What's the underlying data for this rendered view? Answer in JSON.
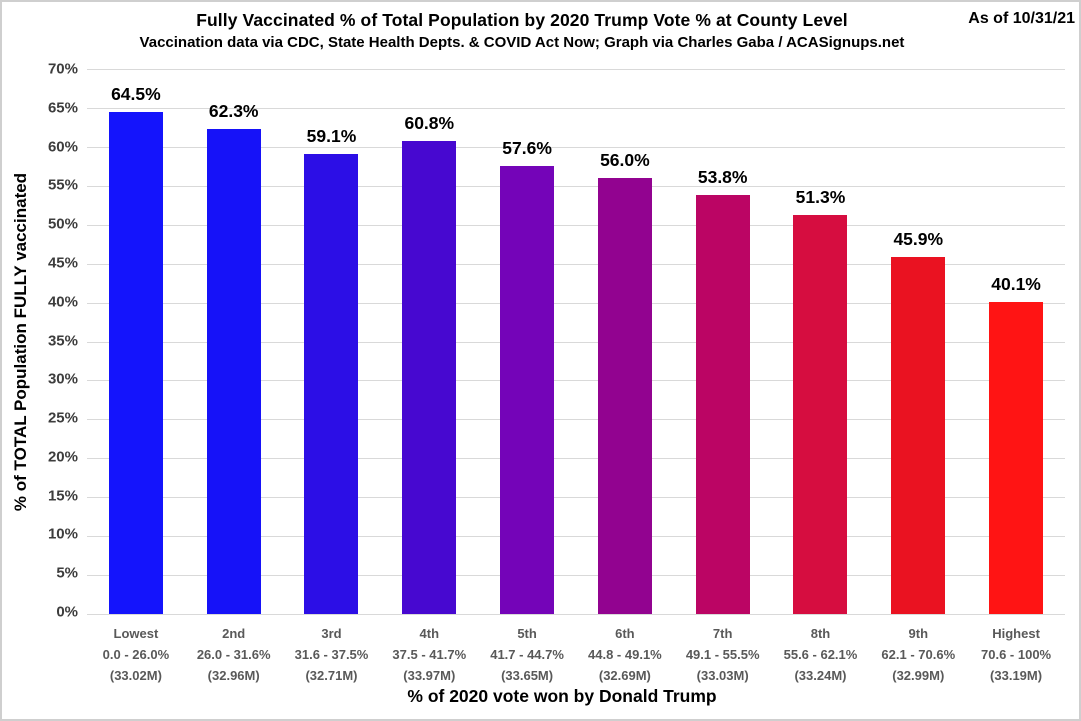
{
  "header": {
    "title": "Fully Vaccinated % of Total Population by 2020 Trump Vote % at County Level",
    "subtitle": "Vaccination data via CDC, State Health Depts. & COVID Act Now; Graph via Charles Gaba / ACASignups.net",
    "as_of": "As of 10/31/21"
  },
  "chart_data": {
    "type": "bar",
    "title": "Fully Vaccinated % of Total Population by 2020 Trump Vote % at County Level",
    "subtitle": "Vaccination data via CDC, State Health Depts. & COVID Act Now; Graph via Charles Gaba / ACASignups.net",
    "xlabel": "% of 2020 vote won by Donald Trump",
    "ylabel": "% of TOTAL Population FULLY vaccinated",
    "ylim": [
      0,
      70
    ],
    "ytick_step": 5,
    "ytick_labels": [
      "70%",
      "65%",
      "60%",
      "55%",
      "50%",
      "45%",
      "40%",
      "35%",
      "30%",
      "25%",
      "20%",
      "15%",
      "10%",
      "5%",
      "0%"
    ],
    "grid": "on",
    "legend": "none",
    "bars": [
      {
        "rank": "Lowest",
        "vote_range": "0.0 - 26.0%",
        "population": "(33.02M)",
        "value": 64.5,
        "value_label": "64.5%",
        "color": "#1414fc"
      },
      {
        "rank": "2nd",
        "vote_range": "26.0 - 31.6%",
        "population": "(32.96M)",
        "value": 62.3,
        "value_label": "62.3%",
        "color": "#1612f8"
      },
      {
        "rank": "3rd",
        "vote_range": "31.6 - 37.5%",
        "population": "(32.71M)",
        "value": 59.1,
        "value_label": "59.1%",
        "color": "#2c0ee6"
      },
      {
        "rank": "4th",
        "vote_range": "37.5 - 41.7%",
        "population": "(33.97M)",
        "value": 60.8,
        "value_label": "60.8%",
        "color": "#4708d0"
      },
      {
        "rank": "5th",
        "vote_range": "41.7 - 44.7%",
        "population": "(33.65M)",
        "value": 57.6,
        "value_label": "57.6%",
        "color": "#7404b8"
      },
      {
        "rank": "6th",
        "vote_range": "44.8 - 49.1%",
        "population": "(32.69M)",
        "value": 56.0,
        "value_label": "56.0%",
        "color": "#920390"
      },
      {
        "rank": "7th",
        "vote_range": "49.1 - 55.5%",
        "population": "(33.03M)",
        "value": 53.8,
        "value_label": "53.8%",
        "color": "#bb0564"
      },
      {
        "rank": "8th",
        "vote_range": "55.6 - 62.1%",
        "population": "(33.24M)",
        "value": 51.3,
        "value_label": "51.3%",
        "color": "#d60d40"
      },
      {
        "rank": "9th",
        "vote_range": "62.1 - 70.6%",
        "population": "(32.99M)",
        "value": 45.9,
        "value_label": "45.9%",
        "color": "#ea1221"
      },
      {
        "rank": "Highest",
        "vote_range": "70.6 - 100%",
        "population": "(33.19M)",
        "value": 40.1,
        "value_label": "40.1%",
        "color": "#ff1414"
      }
    ],
    "colors": {
      "gridline": "#d9d9d9",
      "tick_label": "#3d3d3d",
      "category_label": "#595959",
      "value_label": "#000000",
      "background": "#ffffff",
      "frame_border": "#cfcfcf"
    }
  }
}
